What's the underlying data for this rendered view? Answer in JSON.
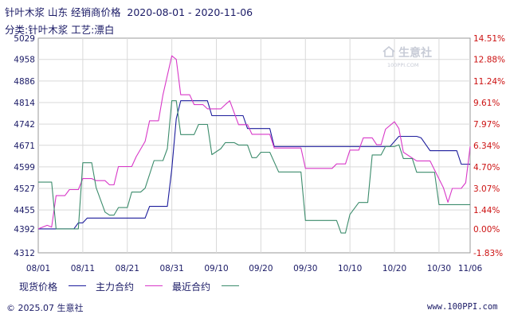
{
  "header": {
    "title": "针叶木浆 山东 经销商价格  2020-08-01 - 2020-11-06",
    "subtitle": "分类:针叶木浆 工艺:漂白"
  },
  "watermark": {
    "name": "生意社",
    "url": "100PPI.COM"
  },
  "legend": {
    "items": [
      {
        "label": "现货价格",
        "color": "#1c1c9c"
      },
      {
        "label": "主力合约",
        "color": "#d838c8"
      },
      {
        "label": "最近合约",
        "color": "#3c8c6c"
      }
    ]
  },
  "footer": {
    "copyright": "© 2025.07 生意社",
    "url": "www.100PPI.com"
  },
  "chart_data": {
    "type": "line",
    "title": "针叶木浆 山东 经销商价格  2020-08-01 - 2020-11-06",
    "x_range": [
      "2020-08-01",
      "2020-11-06"
    ],
    "x_ticks": [
      "08/01",
      "08/11",
      "08/21",
      "08/31",
      "09/10",
      "09/20",
      "09/30",
      "10/10",
      "10/20",
      "10/30",
      "11/06"
    ],
    "y_left_ticks": [
      "4312",
      "4392",
      "4455",
      "4527",
      "4599",
      "4671",
      "4742",
      "4814",
      "4886",
      "4958",
      "5029"
    ],
    "y_right_ticks": [
      "-1.83%",
      "0.00%",
      "1.44%",
      "3.07%",
      "4.70%",
      "6.34%",
      "7.97%",
      "9.61%",
      "11.24%",
      "12.88%",
      "14.51%"
    ],
    "ylim": [
      4312,
      5029
    ],
    "grid": true,
    "legend_position": "bottom",
    "series": [
      {
        "name": "现货价格",
        "color": "#1c1c9c",
        "points": [
          [
            "2020-08-01",
            4392
          ],
          [
            "2020-08-09",
            4392
          ],
          [
            "2020-08-10",
            4412
          ],
          [
            "2020-08-11",
            4412
          ],
          [
            "2020-08-12",
            4428
          ],
          [
            "2020-08-25",
            4428
          ],
          [
            "2020-08-26",
            4467
          ],
          [
            "2020-08-30",
            4467
          ],
          [
            "2020-08-31",
            4592
          ],
          [
            "2020-09-01",
            4760
          ],
          [
            "2020-09-02",
            4820
          ],
          [
            "2020-09-08",
            4820
          ],
          [
            "2020-09-09",
            4770
          ],
          [
            "2020-09-16",
            4770
          ],
          [
            "2020-09-17",
            4727
          ],
          [
            "2020-09-22",
            4727
          ],
          [
            "2020-09-23",
            4667
          ],
          [
            "2020-10-18",
            4667
          ],
          [
            "2020-10-19",
            4667
          ],
          [
            "2020-10-21",
            4701
          ],
          [
            "2020-10-25",
            4701
          ],
          [
            "2020-10-26",
            4696
          ],
          [
            "2020-10-28",
            4653
          ],
          [
            "2020-11-03",
            4653
          ],
          [
            "2020-11-04",
            4608
          ],
          [
            "2020-11-06",
            4608
          ]
        ]
      },
      {
        "name": "主力合约",
        "color": "#d838c8",
        "points": [
          [
            "2020-08-01",
            4392
          ],
          [
            "2020-08-03",
            4404
          ],
          [
            "2020-08-04",
            4398
          ],
          [
            "2020-08-05",
            4503
          ],
          [
            "2020-08-07",
            4503
          ],
          [
            "2020-08-08",
            4523
          ],
          [
            "2020-08-10",
            4523
          ],
          [
            "2020-08-11",
            4560
          ],
          [
            "2020-08-13",
            4560
          ],
          [
            "2020-08-14",
            4553
          ],
          [
            "2020-08-16",
            4553
          ],
          [
            "2020-08-17",
            4539
          ],
          [
            "2020-08-18",
            4539
          ],
          [
            "2020-08-19",
            4600
          ],
          [
            "2020-08-22",
            4600
          ],
          [
            "2020-08-23",
            4633
          ],
          [
            "2020-08-25",
            4684
          ],
          [
            "2020-08-26",
            4753
          ],
          [
            "2020-08-28",
            4753
          ],
          [
            "2020-08-29",
            4840
          ],
          [
            "2020-08-31",
            4970
          ],
          [
            "2020-09-01",
            4958
          ],
          [
            "2020-09-02",
            4840
          ],
          [
            "2020-09-04",
            4840
          ],
          [
            "2020-09-05",
            4807
          ],
          [
            "2020-09-07",
            4807
          ],
          [
            "2020-09-08",
            4793
          ],
          [
            "2020-09-11",
            4793
          ],
          [
            "2020-09-12",
            4807
          ],
          [
            "2020-09-13",
            4820
          ],
          [
            "2020-09-15",
            4740
          ],
          [
            "2020-09-17",
            4740
          ],
          [
            "2020-09-18",
            4708
          ],
          [
            "2020-09-22",
            4708
          ],
          [
            "2020-09-23",
            4662
          ],
          [
            "2020-09-29",
            4662
          ],
          [
            "2020-09-30",
            4594
          ],
          [
            "2020-10-06",
            4594
          ],
          [
            "2020-10-07",
            4609
          ],
          [
            "2020-10-09",
            4609
          ],
          [
            "2020-10-10",
            4655
          ],
          [
            "2020-10-12",
            4655
          ],
          [
            "2020-10-13",
            4696
          ],
          [
            "2020-10-15",
            4696
          ],
          [
            "2020-10-16",
            4673
          ],
          [
            "2020-10-17",
            4673
          ],
          [
            "2020-10-18",
            4725
          ],
          [
            "2020-10-20",
            4750
          ],
          [
            "2020-10-21",
            4727
          ],
          [
            "2020-10-22",
            4648
          ],
          [
            "2020-10-25",
            4619
          ],
          [
            "2020-10-28",
            4619
          ],
          [
            "2020-10-29",
            4589
          ],
          [
            "2020-10-31",
            4529
          ],
          [
            "2020-11-01",
            4481
          ],
          [
            "2020-11-02",
            4527
          ],
          [
            "2020-11-04",
            4527
          ],
          [
            "2020-11-05",
            4546
          ],
          [
            "2020-11-06",
            4667
          ]
        ]
      },
      {
        "name": "最近合约",
        "color": "#3c8c6c",
        "points": [
          [
            "2020-08-01",
            4548
          ],
          [
            "2020-08-04",
            4548
          ],
          [
            "2020-08-05",
            4392
          ],
          [
            "2020-08-10",
            4392
          ],
          [
            "2020-08-11",
            4613
          ],
          [
            "2020-08-13",
            4613
          ],
          [
            "2020-08-14",
            4530
          ],
          [
            "2020-08-16",
            4448
          ],
          [
            "2020-08-17",
            4438
          ],
          [
            "2020-08-18",
            4438
          ],
          [
            "2020-08-19",
            4463
          ],
          [
            "2020-08-21",
            4463
          ],
          [
            "2020-08-22",
            4515
          ],
          [
            "2020-08-24",
            4515
          ],
          [
            "2020-08-25",
            4528
          ],
          [
            "2020-08-27",
            4620
          ],
          [
            "2020-08-29",
            4620
          ],
          [
            "2020-08-30",
            4660
          ],
          [
            "2020-08-31",
            4820
          ],
          [
            "2020-09-01",
            4820
          ],
          [
            "2020-09-02",
            4707
          ],
          [
            "2020-09-05",
            4707
          ],
          [
            "2020-09-06",
            4741
          ],
          [
            "2020-09-08",
            4741
          ],
          [
            "2020-09-09",
            4640
          ],
          [
            "2020-09-11",
            4660
          ],
          [
            "2020-09-12",
            4680
          ],
          [
            "2020-09-14",
            4680
          ],
          [
            "2020-09-15",
            4672
          ],
          [
            "2020-09-17",
            4672
          ],
          [
            "2020-09-18",
            4630
          ],
          [
            "2020-09-19",
            4630
          ],
          [
            "2020-09-20",
            4648
          ],
          [
            "2020-09-22",
            4648
          ],
          [
            "2020-09-24",
            4582
          ],
          [
            "2020-09-29",
            4582
          ],
          [
            "2020-09-30",
            4420
          ],
          [
            "2020-10-07",
            4420
          ],
          [
            "2020-10-08",
            4378
          ],
          [
            "2020-10-09",
            4378
          ],
          [
            "2020-10-10",
            4440
          ],
          [
            "2020-10-12",
            4480
          ],
          [
            "2020-10-14",
            4480
          ],
          [
            "2020-10-15",
            4639
          ],
          [
            "2020-10-17",
            4639
          ],
          [
            "2020-10-18",
            4667
          ],
          [
            "2020-10-20",
            4667
          ],
          [
            "2020-10-21",
            4673
          ],
          [
            "2020-10-22",
            4627
          ],
          [
            "2020-10-24",
            4627
          ],
          [
            "2020-10-25",
            4581
          ],
          [
            "2020-10-29",
            4581
          ],
          [
            "2020-10-30",
            4473
          ],
          [
            "2020-11-06",
            4473
          ]
        ]
      }
    ]
  }
}
